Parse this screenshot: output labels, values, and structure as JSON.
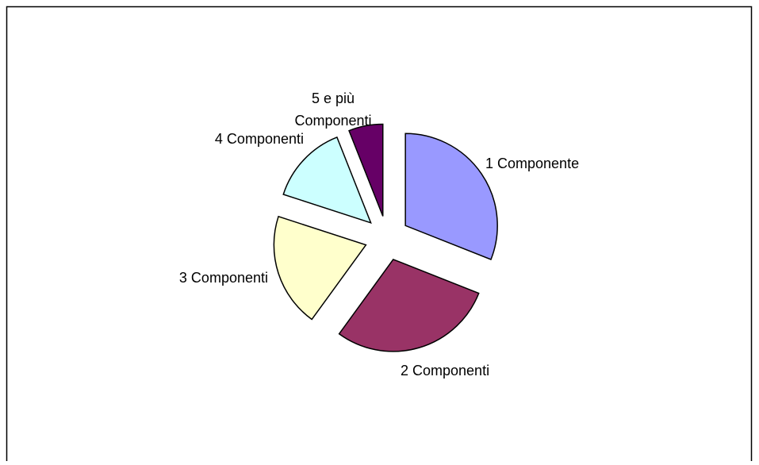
{
  "chart_data": {
    "type": "pie",
    "categories": [
      "1 Componente",
      "2 Componenti",
      "3 Componenti",
      "4 Componenti",
      "5 e più Componenti"
    ],
    "values": [
      31,
      29,
      20,
      14,
      6
    ],
    "colors": [
      "#9999ff",
      "#993366",
      "#ffffcc",
      "#ccffff",
      "#660066"
    ],
    "exploded": true
  }
}
